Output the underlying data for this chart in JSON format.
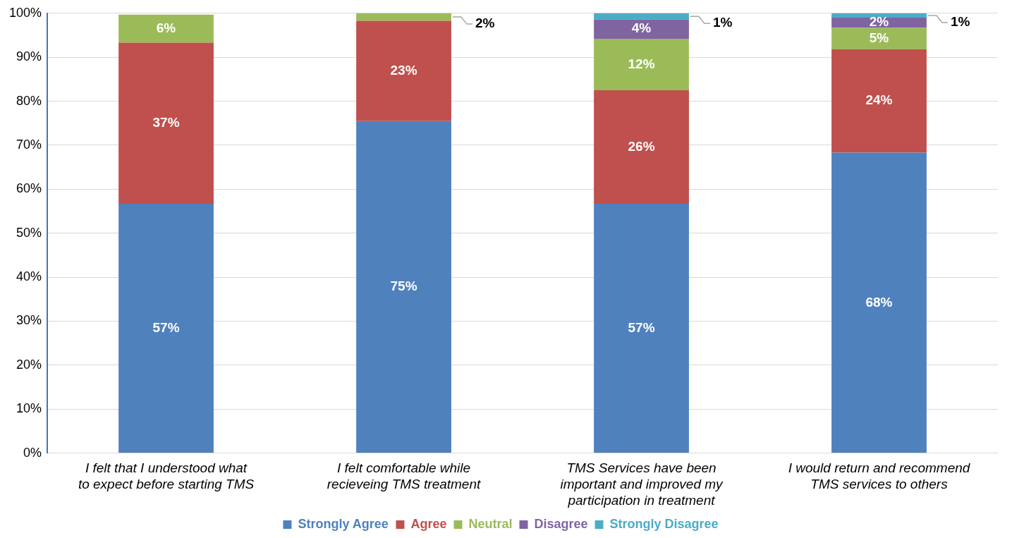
{
  "chart_data": {
    "type": "bar",
    "stacked": true,
    "categories": [
      "I felt that I understood what to expect before starting TMS",
      "I felt comfortable while recieveing TMS treatment",
      "TMS Services have been important and improved my participation in treatment",
      "I would return and recommend TMS services to others"
    ],
    "series": [
      {
        "name": "Strongly Agree",
        "color": "#4f81bd",
        "values": [
          56.7,
          75.5,
          56.7,
          68.3
        ],
        "value_labels": [
          "57%",
          "75%",
          "57%",
          "68%"
        ]
      },
      {
        "name": "Agree",
        "color": "#c0504d",
        "values": [
          36.6,
          22.8,
          25.8,
          23.5
        ],
        "value_labels": [
          "37%",
          "23%",
          "26%",
          "24%"
        ]
      },
      {
        "name": "Neutral",
        "color": "#9bbb59",
        "values": [
          6.4,
          1.7,
          11.7,
          4.9
        ],
        "value_labels": [
          "6%",
          "2%",
          "12%",
          "5%"
        ]
      },
      {
        "name": "Disagree",
        "color": "#8064a2",
        "values": [
          null,
          null,
          4.4,
          2.3
        ],
        "value_labels": [
          null,
          null,
          "4%",
          "2%"
        ]
      },
      {
        "name": "Strongly Disagree",
        "color": "#4bacc6",
        "values": [
          null,
          null,
          1.4,
          1.0
        ],
        "value_labels": [
          null,
          null,
          "1%",
          "1%"
        ]
      }
    ],
    "ylim": [
      0,
      100
    ],
    "yticks": [
      {
        "value": 0,
        "label": "0%"
      },
      {
        "value": 10,
        "label": "10%"
      },
      {
        "value": 20,
        "label": "20%"
      },
      {
        "value": 30,
        "label": "30%"
      },
      {
        "value": 40,
        "label": "40%"
      },
      {
        "value": 50,
        "label": "50%"
      },
      {
        "value": 60,
        "label": "60%"
      },
      {
        "value": 70,
        "label": "70%"
      },
      {
        "value": 80,
        "label": "80%"
      },
      {
        "value": 90,
        "label": "90%"
      },
      {
        "value": 100,
        "label": "100%"
      }
    ],
    "grid": "y",
    "legend": "bottom"
  }
}
